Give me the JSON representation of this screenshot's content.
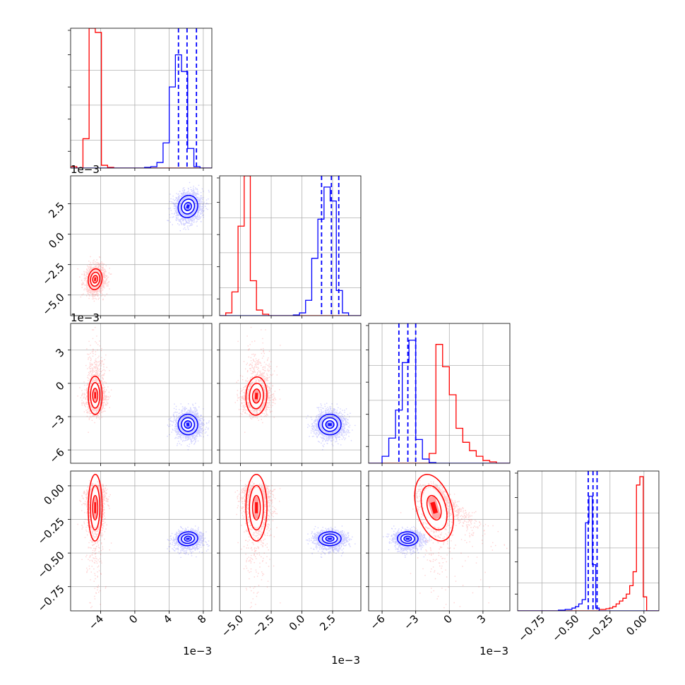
{
  "chart_data": {
    "type": "corner",
    "title": "",
    "grid": true,
    "colors": {
      "red": "#ff0000",
      "blue": "#0000ff"
    },
    "parameters": [
      {
        "index": 0,
        "range": [
          -0.0075,
          0.009
        ],
        "exponent_label": "1e−3",
        "ticks": [
          -0.004,
          0,
          0.004,
          0.008
        ],
        "tick_labels": [
          "−4",
          "0",
          "4",
          "8"
        ]
      },
      {
        "index": 1,
        "range": [
          -0.0067,
          0.0048
        ],
        "exponent_label": "1e−3",
        "ticks": [
          -0.005,
          -0.0025,
          0,
          0.0025
        ],
        "tick_labels": [
          "−5.0",
          "−2.5",
          "0.0",
          "2.5"
        ]
      },
      {
        "index": 2,
        "range": [
          -0.0072,
          0.0054
        ],
        "exponent_label": "1e−3",
        "ticks": [
          -0.006,
          -0.003,
          0,
          0.003
        ],
        "tick_labels": [
          "−6",
          "−3",
          "0",
          "3"
        ]
      },
      {
        "index": 3,
        "range": [
          -0.93,
          0.11
        ],
        "exponent_label": "",
        "ticks": [
          -0.75,
          -0.5,
          -0.25,
          0.0
        ],
        "tick_labels": [
          "−0.75",
          "−0.50",
          "−0.25",
          "0.00"
        ]
      }
    ],
    "series": [
      {
        "color": "red",
        "mean": [
          -0.0046,
          -0.0037,
          -0.0012,
          -0.04
        ],
        "sd": [
          0.00055,
          0.00055,
          0.0016,
          0.09
        ]
      },
      {
        "color": "blue",
        "mean": [
          0.0062,
          0.0023,
          -0.0037,
          -0.375
        ],
        "sd": [
          0.00075,
          0.0006,
          0.0006,
          0.025
        ],
        "quantile_lines": [
          [
            0.0051,
            0.0061,
            0.0072
          ],
          [
            0.0016,
            0.0024,
            0.003
          ],
          [
            -0.0045,
            -0.0037,
            -0.003
          ],
          [
            -0.41,
            -0.375,
            -0.345
          ]
        ]
      }
    ],
    "histograms": [
      {
        "param": 0,
        "bin_edges_from": -0.0075,
        "bin_width": 0.00072,
        "red": [
          0.01,
          0.0,
          0.21,
          1.0,
          0.97,
          0.02,
          0.005,
          0,
          0,
          0,
          0,
          0,
          0,
          0,
          0,
          0,
          0,
          0,
          0,
          0,
          0,
          0,
          0
        ],
        "blue": [
          0,
          0,
          0,
          0,
          0,
          0,
          0,
          0,
          0,
          0,
          0,
          0,
          0.005,
          0.01,
          0.04,
          0.18,
          0.58,
          0.81,
          0.69,
          0.14,
          0.01,
          0,
          0
        ]
      },
      {
        "param": 1,
        "bin_edges_from": -0.0067,
        "bin_width": 0.0005,
        "red": [
          0,
          0.02,
          0.17,
          0.64,
          1.0,
          0.25,
          0.04,
          0.01,
          0,
          0,
          0,
          0,
          0,
          0,
          0,
          0,
          0,
          0,
          0,
          0,
          0,
          0,
          0
        ],
        "blue": [
          0,
          0,
          0,
          0,
          0,
          0,
          0,
          0,
          0,
          0,
          0,
          0,
          0.005,
          0.02,
          0.11,
          0.41,
          0.69,
          0.92,
          0.82,
          0.18,
          0.02,
          0,
          0
        ]
      },
      {
        "param": 2,
        "bin_edges_from": -0.0072,
        "bin_width": 0.0006,
        "red": [
          0,
          0,
          0,
          0,
          0,
          0,
          0,
          0,
          0,
          0.07,
          0.85,
          0.69,
          0.49,
          0.25,
          0.15,
          0.09,
          0.05,
          0.02,
          0.01,
          0,
          0
        ],
        "blue": [
          0,
          0,
          0.05,
          0.18,
          0.38,
          0.72,
          0.88,
          0.17,
          0.03,
          0.005,
          0,
          0,
          0,
          0,
          0,
          0,
          0,
          0,
          0,
          0,
          0
        ]
      },
      {
        "param": 3,
        "bin_edges_from": -0.93,
        "bin_width": 0.025,
        "red": [
          0,
          0,
          0,
          0,
          0,
          0,
          0,
          0,
          0,
          0,
          0,
          0,
          0,
          0,
          0,
          0,
          0,
          0,
          0,
          0,
          0,
          0,
          0,
          0,
          0.01,
          0.01,
          0.015,
          0.02,
          0.03,
          0.05,
          0.07,
          0.09,
          0.12,
          0.18,
          0.28,
          0.9,
          0.96,
          0.1,
          0,
          0,
          0,
          0
        ],
        "blue": [
          0,
          0,
          0,
          0,
          0,
          0,
          0,
          0,
          0,
          0,
          0,
          0,
          0.005,
          0.005,
          0.01,
          0.01,
          0.02,
          0.03,
          0.05,
          0.08,
          0.63,
          0.82,
          0.33,
          0.02,
          0,
          0,
          0,
          0,
          0,
          0,
          0,
          0,
          0,
          0,
          0,
          0,
          0,
          0,
          0,
          0,
          0,
          0
        ]
      }
    ]
  }
}
